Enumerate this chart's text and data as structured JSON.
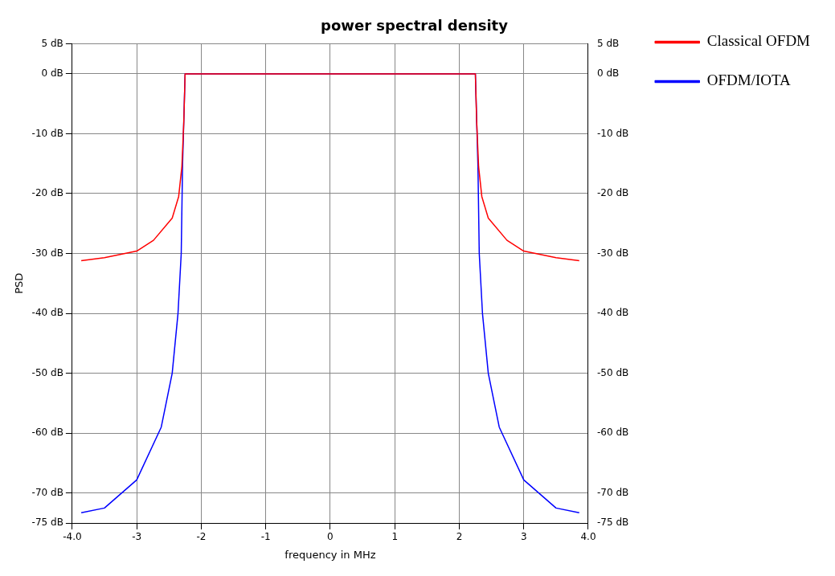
{
  "chart_data": {
    "type": "line",
    "title": "power spectral density",
    "xlabel": "frequency in MHz",
    "ylabel": "PSD",
    "xlim": [
      -4,
      4
    ],
    "xticks": [
      {
        "value": -4,
        "label": "-4.0"
      },
      -3,
      -2,
      -1,
      0,
      1,
      2,
      3,
      {
        "value": 4,
        "label": "4.0"
      }
    ],
    "ylim": [
      -75,
      5
    ],
    "yticks": [
      {
        "value": 5,
        "label": "5 dB"
      },
      {
        "value": 0,
        "label": "0 dB"
      },
      {
        "value": -10,
        "label": "-10 dB"
      },
      {
        "value": -20,
        "label": "-20 dB"
      },
      {
        "value": -30,
        "label": "-30 dB"
      },
      {
        "value": -40,
        "label": "-40 dB"
      },
      {
        "value": -50,
        "label": "-50 dB"
      },
      {
        "value": -60,
        "label": "-60 dB"
      },
      {
        "value": -70,
        "label": "-70 dB"
      },
      {
        "value": -75,
        "label": "-75 dB"
      }
    ],
    "y2lim": [
      -75,
      5
    ],
    "y2ticks": [
      {
        "value": 5,
        "label": "5 dB"
      },
      {
        "value": 0,
        "label": "0 dB"
      },
      {
        "value": -10,
        "label": "-10 dB"
      },
      {
        "value": -20,
        "label": "-20 dB"
      },
      {
        "value": -30,
        "label": "-30 dB"
      },
      {
        "value": -40,
        "label": "-40 dB"
      },
      {
        "value": -50,
        "label": "-50 dB"
      },
      {
        "value": -60,
        "label": "-60 dB"
      },
      {
        "value": -70,
        "label": "-70 dB"
      },
      {
        "value": -75,
        "label": "-75 dB"
      }
    ],
    "grid": true,
    "legend": "right",
    "marker": "none",
    "line_style": "solid",
    "series": [
      {
        "name": "Classical OFDM",
        "color": "#ff0000",
        "x": [
          -3.86,
          -3.5,
          -3,
          -2.74,
          -2.45,
          -2.35,
          -2.3,
          -2.27,
          -2.25,
          2.25,
          2.27,
          2.3,
          2.35,
          2.45,
          2.74,
          3,
          3.5,
          3.86
        ],
        "values": [
          -31.2,
          -30.7,
          -29.6,
          -27.8,
          -24.1,
          -20.5,
          -15.5,
          -8,
          0,
          0,
          -8,
          -15.5,
          -20.5,
          -24.1,
          -27.8,
          -29.6,
          -30.7,
          -31.2
        ]
      },
      {
        "name": "OFDM/IOTA",
        "color": "#0000ff",
        "x": [
          -3.86,
          -3.5,
          -3,
          -2.62,
          -2.45,
          -2.36,
          -2.31,
          -2.29,
          -2.25,
          2.25,
          2.29,
          2.31,
          2.36,
          2.45,
          2.62,
          3,
          3.5,
          3.86
        ],
        "values": [
          -73.3,
          -72.5,
          -67.8,
          -59,
          -50,
          -40,
          -30,
          -15.5,
          0,
          0,
          -15.5,
          -30,
          -40,
          -50,
          -59,
          -67.8,
          -72.5,
          -73.3
        ]
      }
    ]
  }
}
